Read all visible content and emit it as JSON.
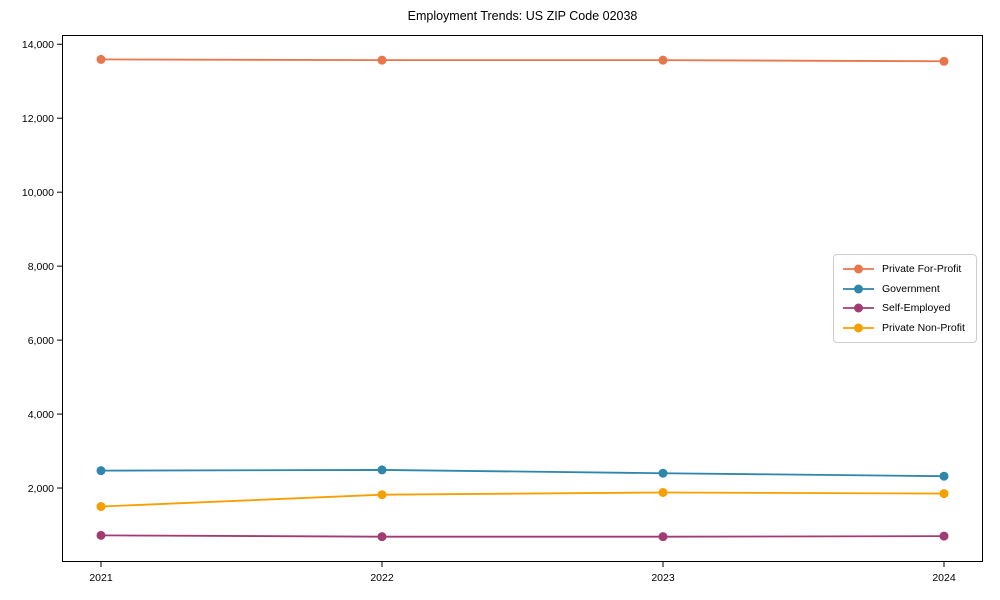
{
  "figure": {
    "background": "#ffffff",
    "frame_color": "#000000"
  },
  "chart_data": {
    "type": "line",
    "title": "Employment Trends: US ZIP Code 02038",
    "xlabel": "",
    "ylabel": "",
    "categories": [
      "2021",
      "2022",
      "2023",
      "2024"
    ],
    "series": [
      {
        "name": "Private For-Profit",
        "color": "#E8764B",
        "values": [
          13590,
          13570,
          13570,
          13540
        ]
      },
      {
        "name": "Government",
        "color": "#2E86AB",
        "values": [
          2470,
          2490,
          2400,
          2320
        ]
      },
      {
        "name": "Self-Employed",
        "color": "#A23B72",
        "values": [
          720,
          685,
          685,
          700
        ]
      },
      {
        "name": "Private Non-Profit",
        "color": "#F5A000",
        "values": [
          1500,
          1820,
          1880,
          1850
        ]
      }
    ],
    "ylim": [
      0,
      14250
    ],
    "yticks": [
      2000,
      4000,
      6000,
      8000,
      10000,
      12000,
      14000
    ],
    "ytick_labels": [
      "2,000",
      "4,000",
      "6,000",
      "8,000",
      "10,000",
      "12,000",
      "14,000"
    ],
    "grid": false,
    "marker": "circle",
    "legend_position": "center right"
  }
}
